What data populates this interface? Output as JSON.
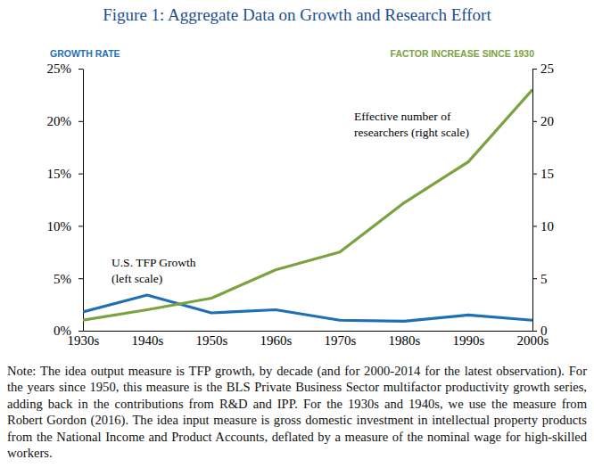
{
  "chart_data": {
    "type": "line",
    "title": "Figure 1: Aggregate Data on Growth and Research Effort",
    "y_label": "GROWTH RATE",
    "y2_label": "FACTOR INCREASE SINCE 1930",
    "categories": [
      "1930s",
      "1940s",
      "1950s",
      "1960s",
      "1970s",
      "1980s",
      "1990s",
      "2000s"
    ],
    "series": [
      {
        "color": "#1f6fb5",
        "values": [
          1.8,
          3.4,
          1.7,
          2.0,
          1.0,
          0.9,
          1.5,
          1.0
        ]
      },
      {
        "color": "#7ba23f",
        "axis": "y2",
        "values": [
          1.0,
          2.0,
          3.1,
          5.8,
          7.5,
          12.2,
          16.1,
          23.0
        ]
      }
    ],
    "ylim": [
      0,
      25
    ],
    "yticks": [
      {
        "value": 0,
        "label": "0%"
      },
      {
        "value": 5,
        "label": "5%"
      },
      {
        "value": 10,
        "label": "10%"
      },
      {
        "value": 15,
        "label": "15%"
      },
      {
        "value": 20,
        "label": "20%"
      },
      {
        "value": 25,
        "label": "25%"
      }
    ],
    "y2lim": [
      0,
      25
    ],
    "y2ticks": [
      0,
      5,
      10,
      15,
      20,
      25
    ],
    "grid": false,
    "annotations": [
      "Effective number of",
      "researchers (right scale)",
      "U.S. TFP Growth",
      "(left scale)"
    ],
    "note": "Note: The idea output measure is TFP growth, by decade (and for 2000-2014 for the latest observation). For the years since 1950, this measure is the BLS Private Business Sector multifactor productivity growth series, adding back in the contributions from R&D and IPP. For the 1930s and 1940s, we use the measure from Robert Gordon (2016). The idea input measure is gross domestic investment in intellectual property products from the National Income and Product Accounts, deflated by a measure of the nominal wage for high-skilled workers."
  }
}
